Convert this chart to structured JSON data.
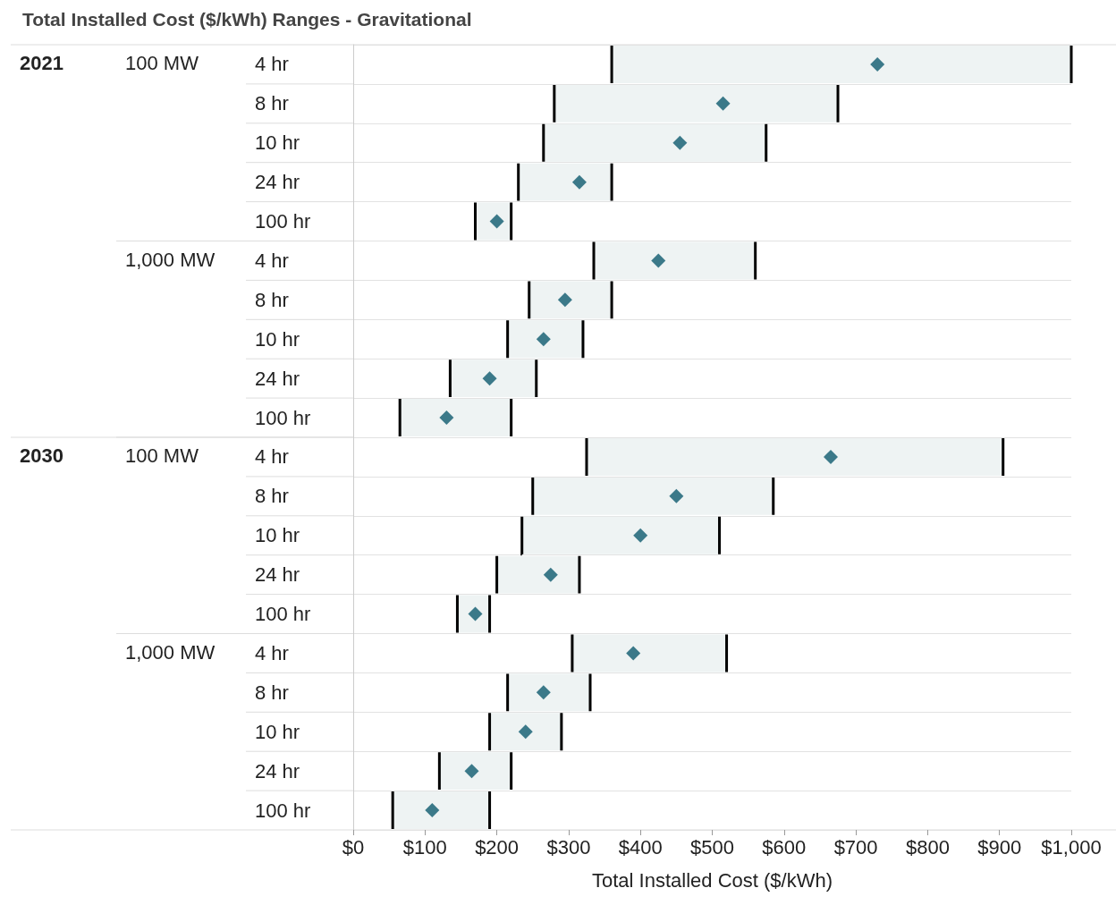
{
  "chart_data": {
    "type": "bar",
    "orientation": "horizontal",
    "title": "Total Installed Cost ($/kWh) Ranges - Gravitational",
    "xlabel": "Total Installed Cost ($/kWh)",
    "categories": [
      "4 hr",
      "8 hr",
      "10 hr",
      "24 hr",
      "100 hr",
      "4 hr",
      "8 hr",
      "10 hr",
      "24 hr",
      "100 hr",
      "4 hr",
      "8 hr",
      "10 hr",
      "24 hr",
      "100 hr",
      "4 hr",
      "8 hr",
      "10 hr",
      "24 hr",
      "100 hr"
    ],
    "annotations": [
      "2021",
      "100 MW",
      "1,000 MW",
      "2030",
      "100 MW",
      "1,000 MW"
    ],
    "series": [
      {
        "color": "#eef3f3",
        "base": [
          360,
          280,
          265,
          230,
          170,
          335,
          245,
          215,
          135,
          65,
          325,
          250,
          235,
          200,
          145,
          305,
          215,
          190,
          120,
          55
        ],
        "values": [
          640,
          395,
          310,
          130,
          50,
          225,
          115,
          105,
          120,
          155,
          580,
          335,
          275,
          115,
          45,
          215,
          115,
          100,
          100,
          135
        ]
      },
      {
        "type": "scatter",
        "color": "#0e5a6e",
        "marker": "diamond",
        "values": [
          730,
          515,
          455,
          315,
          200,
          425,
          295,
          265,
          190,
          130,
          665,
          450,
          400,
          275,
          170,
          390,
          265,
          240,
          165,
          110
        ]
      }
    ],
    "xlim": [
      0,
      1000
    ],
    "xticks": [
      {
        "value": 0,
        "label": "$0"
      },
      {
        "value": 100,
        "label": "$100"
      },
      {
        "value": 200,
        "label": "$200"
      },
      {
        "value": 300,
        "label": "$300"
      },
      {
        "value": 400,
        "label": "$400"
      },
      {
        "value": 500,
        "label": "$500"
      },
      {
        "value": 600,
        "label": "$600"
      },
      {
        "value": 700,
        "label": "$700"
      },
      {
        "value": 800,
        "label": "$800"
      },
      {
        "value": 900,
        "label": "$900"
      },
      {
        "value": 1000,
        "label": "$1,000"
      }
    ],
    "grid": "y"
  }
}
